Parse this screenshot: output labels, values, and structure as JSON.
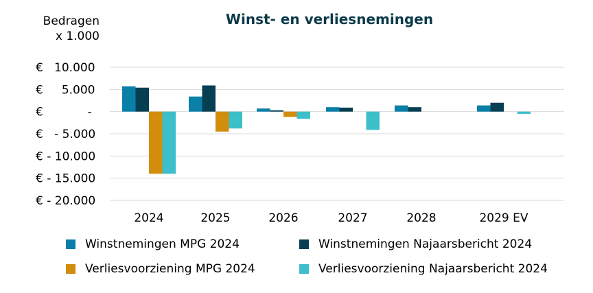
{
  "chart_data": {
    "type": "bar",
    "title": "Winst- en verliesnemingen",
    "unit_label": [
      "Bedragen",
      "x 1.000"
    ],
    "categories": [
      "2024",
      "2025",
      "2026",
      "2027",
      "2028",
      "2029 EV"
    ],
    "ylim": [
      -20000,
      10000
    ],
    "yticks": [
      {
        "value": 10000,
        "label": "€   10.000"
      },
      {
        "value": 5000,
        "label": "€     5.000"
      },
      {
        "value": 0,
        "label": "€            -"
      },
      {
        "value": -5000,
        "label": "€   - 5.000"
      },
      {
        "value": -10000,
        "label": "€ - 10.000"
      },
      {
        "value": -15000,
        "label": "€ - 15.000"
      },
      {
        "value": -20000,
        "label": "€ - 20.000"
      }
    ],
    "grid": true,
    "legend_position": "bottom",
    "series": [
      {
        "name": "Winstnemingen MPG 2024",
        "color": "#0a7fa8",
        "values": [
          5700,
          3400,
          700,
          1000,
          1400,
          1400
        ]
      },
      {
        "name": "Winstnemingen Najaarsbericht 2024",
        "color": "#063e52",
        "values": [
          5400,
          5900,
          300,
          900,
          1000,
          2000
        ]
      },
      {
        "name": "Verliesvoorziening MPG 2024",
        "color": "#d38d0d",
        "values": [
          -14000,
          -4500,
          -1200,
          0,
          0,
          0
        ]
      },
      {
        "name": "Verliesvoorziening Najaarsbericht 2024",
        "color": "#3cbfc9",
        "values": [
          -14000,
          -3800,
          -1600,
          -4100,
          0,
          -500
        ]
      }
    ]
  }
}
